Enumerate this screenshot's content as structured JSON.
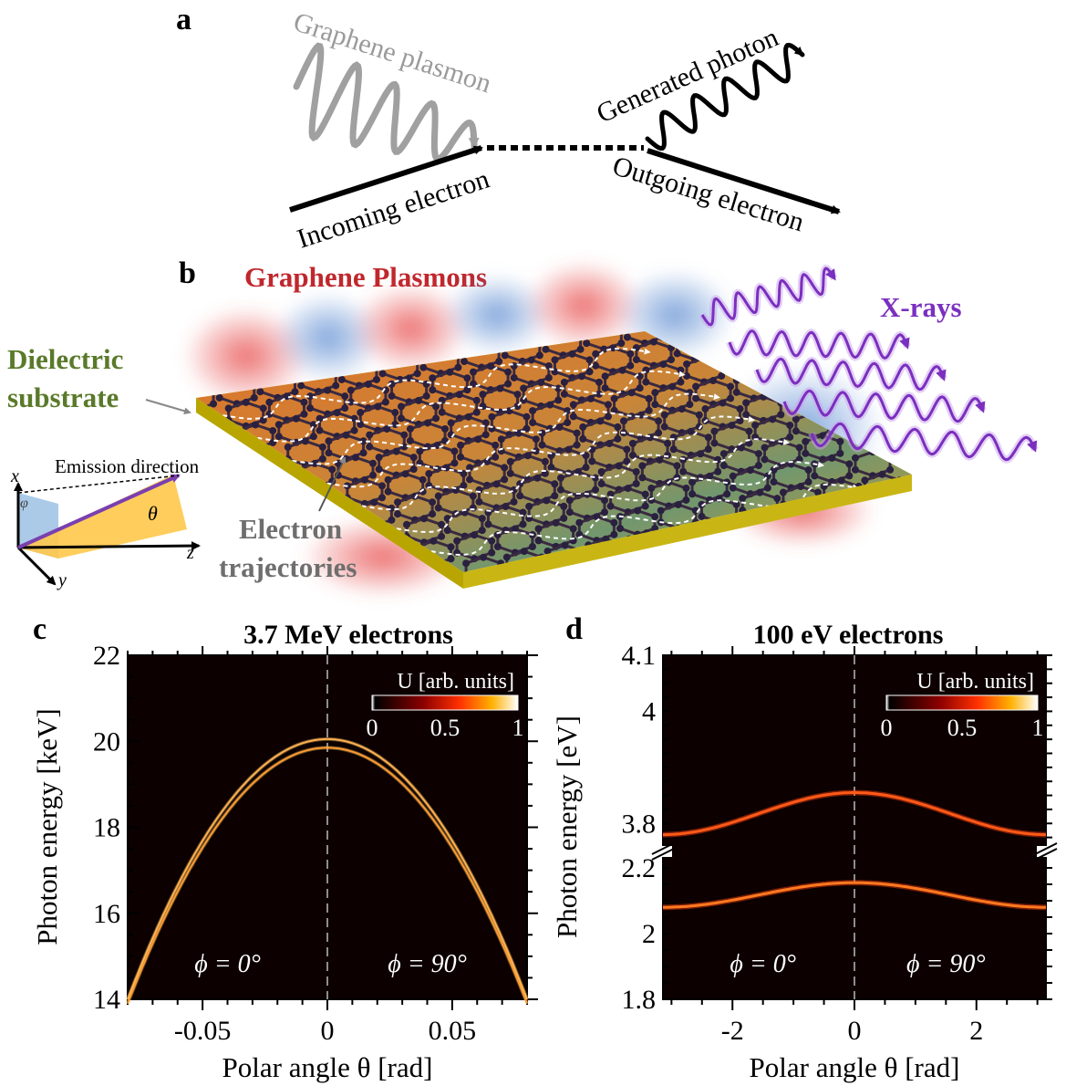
{
  "panel_a": {
    "label": "a",
    "plasmon_label": "Graphene plasmon",
    "photon_label": "Generated photon",
    "incoming_label": "Incoming electron",
    "outgoing_label": "Outgoing electron"
  },
  "panel_b": {
    "label": "b",
    "plasmons_label": "Graphene Plasmons",
    "xrays_label": "X-rays",
    "substrate_line1": "Dielectric",
    "substrate_line2": "substrate",
    "trajectories_line1": "Electron",
    "trajectories_line2": "trajectories",
    "emission_label": "Emission direction",
    "axis_x": "x",
    "axis_y": "y",
    "axis_z": "z",
    "angle_phi": "φ",
    "angle_theta": "θ"
  },
  "colors": {
    "plasmons_text": "#c0272d",
    "xrays": "#7b2fbf",
    "substrate_text": "#5a7a2a",
    "gray_text": "#6e6e6e",
    "plot_bg": "#0c0000",
    "curve": "#ff7a1a"
  },
  "chart_data": [
    {
      "panel": "c",
      "type": "line",
      "title": "3.7 MeV electrons",
      "xlabel": "Polar angle θ [rad]",
      "ylabel": "Photon energy [keV]",
      "xlim": [
        -0.08,
        0.08
      ],
      "ylim": [
        14,
        22
      ],
      "xticks": [
        -0.05,
        0,
        0.05
      ],
      "xtick_labels": [
        "-0.05",
        "0",
        "0.05"
      ],
      "yticks": [
        14,
        16,
        18,
        20,
        22
      ],
      "ytick_labels": [
        "14",
        "16",
        "18",
        "20",
        "22"
      ],
      "colorbar": {
        "label": "U [arb. units]",
        "ticks": [
          "0",
          "0.5",
          "1"
        ]
      },
      "annotations": [
        "ϕ = 0°",
        "ϕ = 90°"
      ],
      "series": [
        {
          "x": [
            -0.08,
            -0.06,
            -0.04,
            -0.02,
            0,
            0.02,
            0.04,
            0.06,
            0.08
          ],
          "y": [
            14.0,
            16.3,
            18.3,
            19.6,
            20.05,
            19.6,
            18.3,
            16.3,
            14.0
          ]
        },
        {
          "x": [
            -0.08,
            -0.06,
            -0.04,
            -0.02,
            0,
            0.02,
            0.04,
            0.06,
            0.08
          ],
          "y": [
            13.9,
            16.1,
            18.1,
            19.4,
            19.85,
            19.4,
            18.1,
            16.1,
            13.9
          ]
        }
      ]
    },
    {
      "panel": "d",
      "type": "line",
      "title": "100 eV electrons",
      "xlabel": "Polar angle θ [rad]",
      "ylabel": "Photon energy [eV]",
      "xlim": [
        -3.14,
        3.14
      ],
      "ylim_lower": [
        1.8,
        2.25
      ],
      "ylim_upper": [
        3.75,
        4.1
      ],
      "xticks": [
        -2,
        0,
        2
      ],
      "xtick_labels": [
        "-2",
        "0",
        "2"
      ],
      "yticks": [
        1.8,
        2,
        2.2,
        3.8,
        4,
        4.1
      ],
      "ytick_labels": [
        "1.8",
        "2",
        "2.2",
        "3.8",
        "4",
        "4.1"
      ],
      "colorbar": {
        "label": "U [arb. units]",
        "ticks": [
          "0",
          "0.5",
          "1"
        ]
      },
      "annotations": [
        "ϕ = 0°",
        "ϕ = 90°"
      ],
      "series": [
        {
          "x": [
            -3.14,
            -2,
            -1,
            0,
            1,
            2,
            3.14
          ],
          "y": [
            3.78,
            3.795,
            3.835,
            3.855,
            3.835,
            3.795,
            3.78
          ]
        },
        {
          "x": [
            -3.14,
            -2,
            -1,
            0,
            1,
            2,
            3.14
          ],
          "y": [
            2.08,
            2.095,
            2.135,
            2.155,
            2.135,
            2.095,
            2.08
          ]
        }
      ]
    }
  ]
}
